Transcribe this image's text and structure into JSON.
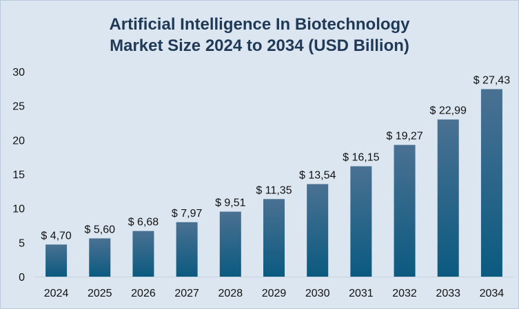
{
  "chart_data": {
    "type": "bar",
    "title_line1": "Artificial Intelligence In Biotechnology",
    "title_line2": "Market Size 2024 to 2034 (USD Billion)",
    "xlabel": "",
    "ylabel": "",
    "categories": [
      "2024",
      "2025",
      "2026",
      "2027",
      "2028",
      "2029",
      "2030",
      "2031",
      "2032",
      "2033",
      "2034"
    ],
    "values": [
      4.7,
      5.6,
      6.68,
      7.97,
      9.51,
      11.35,
      13.54,
      16.15,
      19.27,
      22.99,
      27.43
    ],
    "data_labels": [
      "$ 4,70",
      "$ 5,60",
      "$ 6,68",
      "$ 7,97",
      "$ 9,51",
      "$ 11,35",
      "$ 13,54",
      "$ 16,15",
      "$ 19,27",
      "$ 22,99",
      "$ 27,43"
    ],
    "yticks": [
      0,
      5,
      10,
      15,
      20,
      25,
      30
    ],
    "ylim": [
      0,
      30
    ],
    "grid": false,
    "legend": "none",
    "colors": {
      "bar_top": "#4a7192",
      "bar_bottom": "#0b5a80",
      "background": "#dce6f0",
      "title": "#1f3957"
    }
  }
}
